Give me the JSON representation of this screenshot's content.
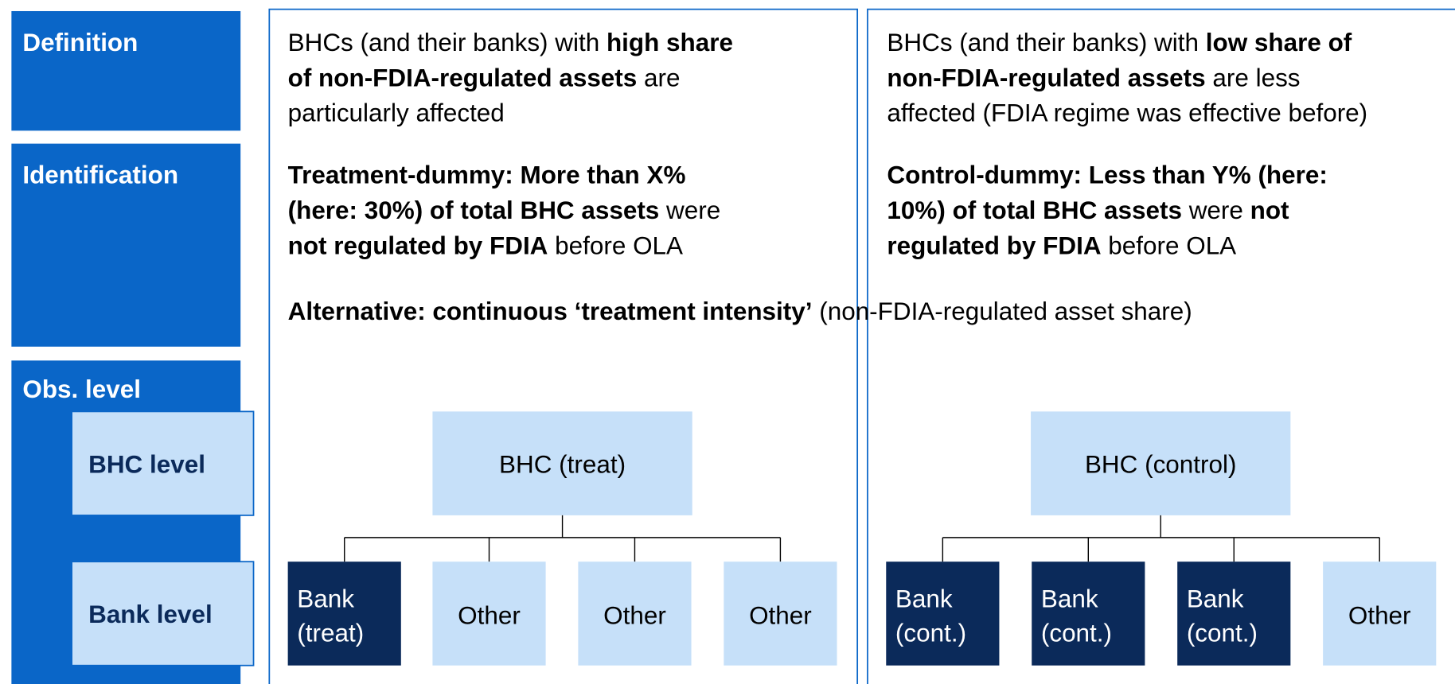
{
  "rows": {
    "definition": "Definition",
    "identification": "Identification",
    "obs_level": "Obs. level",
    "bhc_level": "BHC level",
    "bank_level": "Bank level"
  },
  "columns": [
    {
      "definition": [
        [
          {
            "text": "BHCs (and their banks) with "
          },
          {
            "text": "high share",
            "bold": true
          }
        ],
        [
          {
            "text": "of non-FDIA-regulated assets",
            "bold": true
          },
          {
            "text": " are"
          }
        ],
        [
          {
            "text": "particularly affected"
          }
        ]
      ],
      "identification": [
        [
          {
            "text": "Treatment-dummy: More than X%",
            "bold": true
          }
        ],
        [
          {
            "text": "(here: 30%) of total BHC assets",
            "bold": true
          },
          {
            "text": " were"
          }
        ],
        [
          {
            "text": "not regulated by FDIA",
            "bold": true
          },
          {
            "text": " before OLA"
          }
        ]
      ],
      "bhc": "BHC (treat)",
      "banks": [
        {
          "lines": [
            "Bank",
            "(treat)"
          ],
          "color": "#0b2a5a"
        },
        {
          "lines": [
            "Other"
          ],
          "color": "#c6e0f9"
        },
        {
          "lines": [
            "Other"
          ],
          "color": "#c6e0f9"
        },
        {
          "lines": [
            "Other"
          ],
          "color": "#c6e0f9"
        }
      ]
    },
    {
      "definition": [
        [
          {
            "text": "BHCs (and their banks) with "
          },
          {
            "text": "low share of",
            "bold": true
          }
        ],
        [
          {
            "text": "non-FDIA-regulated assets",
            "bold": true
          },
          {
            "text": " are less"
          }
        ],
        [
          {
            "text": "affected (FDIA regime was effective before)"
          }
        ]
      ],
      "identification": [
        [
          {
            "text": "Control-dummy: Less than Y% (here:",
            "bold": true
          }
        ],
        [
          {
            "text": "10%) of total BHC assets",
            "bold": true
          },
          {
            "text": " were "
          },
          {
            "text": "not",
            "bold": true
          }
        ],
        [
          {
            "text": "regulated by FDIA",
            "bold": true
          },
          {
            "text": " before OLA"
          }
        ]
      ],
      "bhc": "BHC (control)",
      "banks": [
        {
          "lines": [
            "Bank",
            "(cont.)"
          ],
          "color": "#0b2a5a"
        },
        {
          "lines": [
            "Bank",
            "(cont.)"
          ],
          "color": "#0b2a5a"
        },
        {
          "lines": [
            "Bank",
            "(cont.)"
          ],
          "color": "#0b2a5a"
        },
        {
          "lines": [
            "Other"
          ],
          "color": "#c6e0f9"
        }
      ]
    }
  ],
  "alternative": [
    {
      "text": "Alternative: continuous ‘treatment intensity’",
      "bold": true
    },
    {
      "text": " (non-FDIA-regulated asset share)"
    }
  ]
}
